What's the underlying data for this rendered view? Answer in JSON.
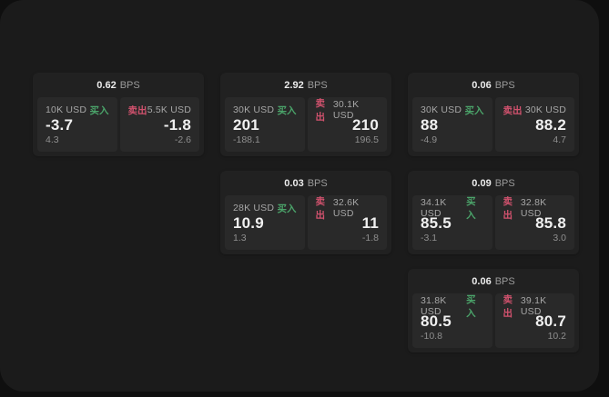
{
  "labels": {
    "bps": "BPS",
    "buy": "买入",
    "sell": "卖出"
  },
  "colors": {
    "buy_accent": "#4ba46a",
    "sell_accent": "#d2526e",
    "surface": "#1b1b1b",
    "backdrop": "#0f0f0f",
    "card": "#212121",
    "panel": "#292929"
  },
  "cards": [
    {
      "bps": "0.62",
      "buy": {
        "notional": "10K USD",
        "price": "-3.7",
        "delta": "4.3"
      },
      "sell": {
        "notional": "5.5K USD",
        "price": "-1.8",
        "delta": "-2.6"
      }
    },
    {
      "bps": "2.92",
      "buy": {
        "notional": "30K USD",
        "price": "201",
        "delta": "-188.1"
      },
      "sell": {
        "notional": "30.1K USD",
        "price": "210",
        "delta": "196.5"
      }
    },
    {
      "bps": "0.06",
      "buy": {
        "notional": "30K USD",
        "price": "88",
        "delta": "-4.9"
      },
      "sell": {
        "notional": "30K USD",
        "price": "88.2",
        "delta": "4.7"
      }
    },
    {
      "bps": "0.03",
      "buy": {
        "notional": "28K USD",
        "price": "10.9",
        "delta": "1.3"
      },
      "sell": {
        "notional": "32.6K USD",
        "price": "11",
        "delta": "-1.8"
      }
    },
    {
      "bps": "0.09",
      "buy": {
        "notional": "34.1K USD",
        "price": "85.5",
        "delta": "-3.1"
      },
      "sell": {
        "notional": "32.8K USD",
        "price": "85.8",
        "delta": "3.0"
      }
    },
    {
      "bps": "0.06",
      "buy": {
        "notional": "31.8K USD",
        "price": "80.5",
        "delta": "-10.8"
      },
      "sell": {
        "notional": "39.1K USD",
        "price": "80.7",
        "delta": "10.2"
      }
    }
  ]
}
